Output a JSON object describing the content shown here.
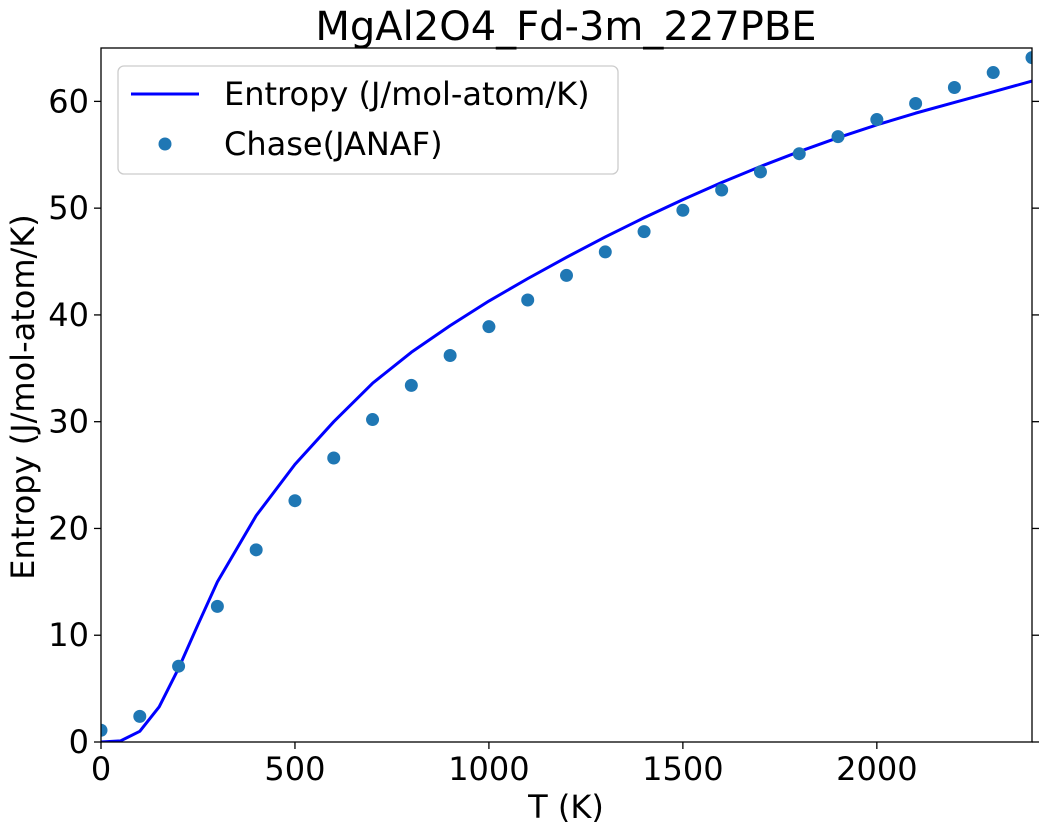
{
  "chart_data": {
    "type": "line",
    "title": "MgAl2O4_Fd-3m_227PBE",
    "xlabel": "T (K)",
    "ylabel": "Entropy (J/mol-atom/K)",
    "xlim": [
      0,
      2400
    ],
    "ylim": [
      0,
      65
    ],
    "xticks": [
      0,
      500,
      1000,
      1500,
      2000
    ],
    "yticks": [
      0,
      10,
      20,
      30,
      40,
      50,
      60
    ],
    "grid": false,
    "legend_position": "top-left",
    "series": [
      {
        "name": "Entropy (J/mol-atom/K)",
        "kind": "line",
        "color": "#0000ff",
        "x": [
          0,
          50,
          100,
          150,
          200,
          250,
          300,
          400,
          500,
          600,
          700,
          800,
          900,
          1000,
          1100,
          1200,
          1300,
          1400,
          1500,
          1600,
          1700,
          1800,
          1900,
          2000,
          2100,
          2200,
          2300,
          2400
        ],
        "y": [
          0,
          0.1,
          1.0,
          3.3,
          6.9,
          11.0,
          15.0,
          21.2,
          26.0,
          30.0,
          33.6,
          36.5,
          39.0,
          41.3,
          43.4,
          45.4,
          47.3,
          49.1,
          50.8,
          52.4,
          53.9,
          55.3,
          56.6,
          57.8,
          58.9,
          59.9,
          60.9,
          61.9
        ]
      },
      {
        "name": "Chase(JANAF)",
        "kind": "scatter",
        "color": "#1f77b4",
        "x": [
          0,
          100,
          200,
          300,
          400,
          500,
          600,
          700,
          800,
          900,
          1000,
          1100,
          1200,
          1300,
          1400,
          1500,
          1600,
          1700,
          1800,
          1900,
          2000,
          2100,
          2200,
          2300,
          2400
        ],
        "y": [
          1.1,
          2.4,
          7.1,
          12.7,
          18.0,
          22.6,
          26.6,
          30.2,
          33.4,
          36.2,
          38.9,
          41.4,
          43.7,
          45.9,
          47.8,
          49.8,
          51.7,
          53.4,
          55.1,
          56.7,
          58.3,
          59.8,
          61.3,
          62.7,
          64.1
        ]
      }
    ]
  }
}
